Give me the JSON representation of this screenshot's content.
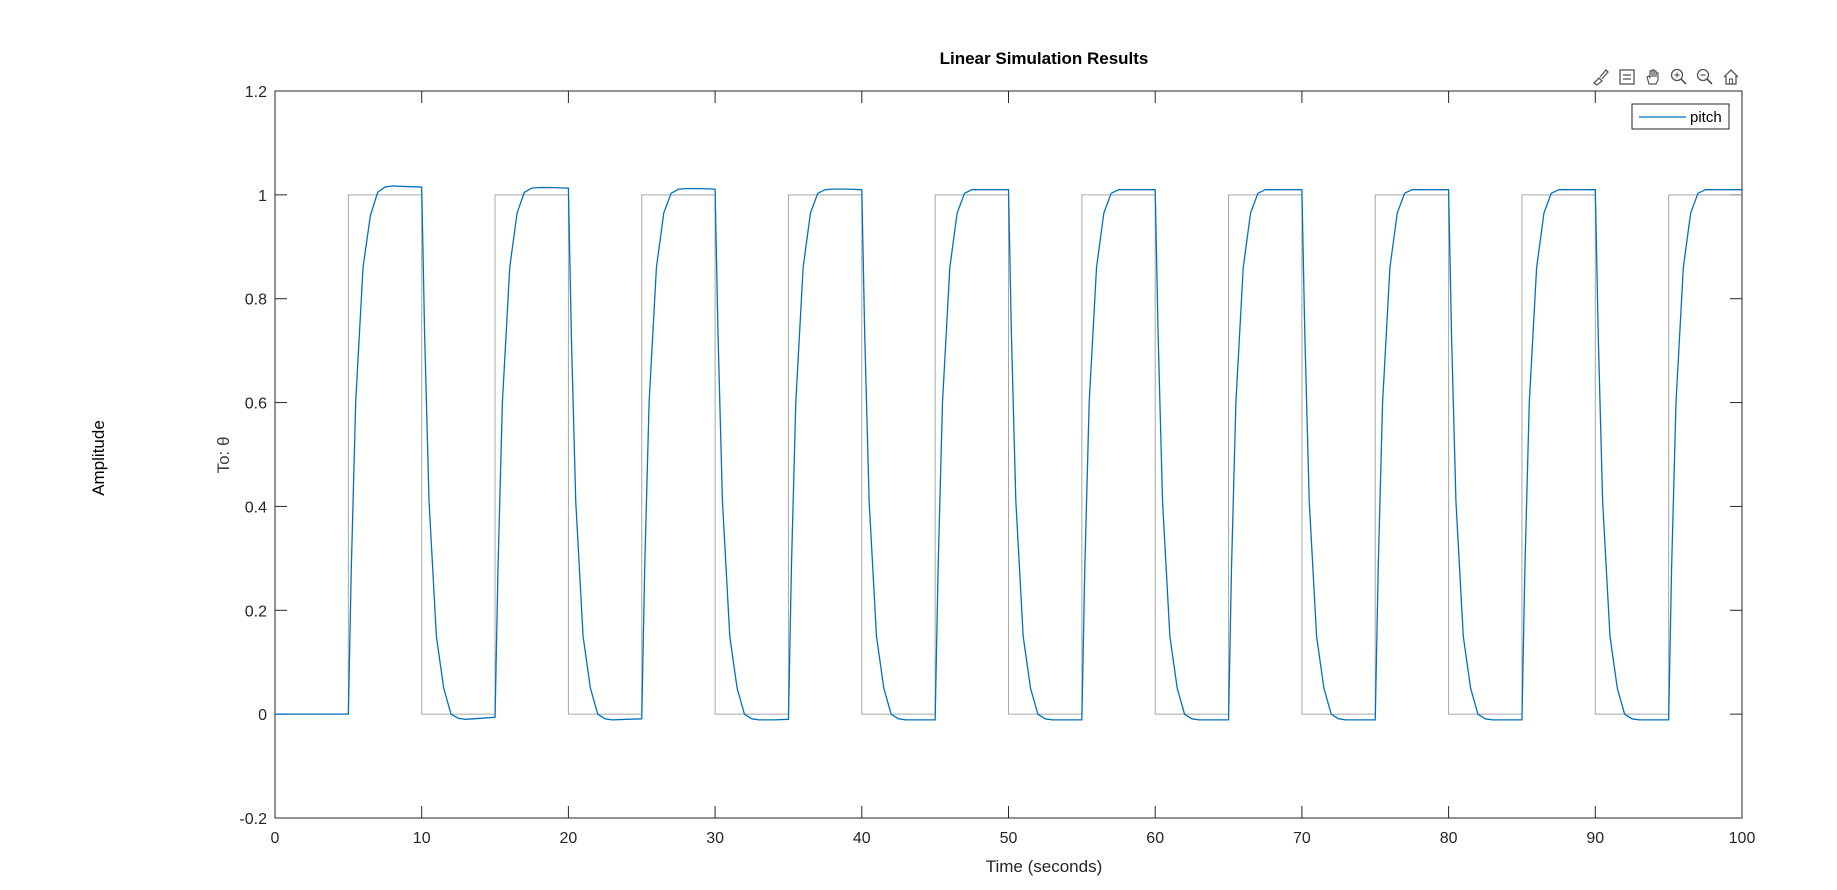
{
  "figure": {
    "outer_ylabel": "Amplitude",
    "toolbar": [
      {
        "name": "brush-icon",
        "label": "Brush"
      },
      {
        "name": "datatip-icon",
        "label": "Data Tips"
      },
      {
        "name": "pan-icon",
        "label": "Pan"
      },
      {
        "name": "zoom-in-icon",
        "label": "Zoom In"
      },
      {
        "name": "zoom-out-icon",
        "label": "Zoom Out"
      },
      {
        "name": "home-icon",
        "label": "Restore View"
      }
    ]
  },
  "chart_data": {
    "type": "line",
    "title": "Linear Simulation Results",
    "xlabel": "Time (seconds)",
    "ylabel": "To: θ",
    "xlim": [
      0,
      100
    ],
    "ylim": [
      -0.2,
      1.2
    ],
    "xticks": [
      0,
      10,
      20,
      30,
      40,
      50,
      60,
      70,
      80,
      90,
      100
    ],
    "yticks": [
      -0.2,
      0,
      0.2,
      0.4,
      0.6,
      0.8,
      1,
      1.2
    ],
    "ytick_labels": [
      "-0.2",
      "0",
      "0.2",
      "0.4",
      "0.6",
      "0.8",
      "1",
      "1.2"
    ],
    "grid": false,
    "legend": {
      "location": "top-right",
      "entries": [
        "pitch"
      ]
    },
    "input_signal": {
      "color": "#a8a8a8",
      "type": "square wave",
      "period": 10,
      "low": 0,
      "high": 1,
      "rise_times": [
        5,
        15,
        25,
        35,
        45,
        55,
        65,
        75,
        85,
        95
      ],
      "fall_times": [
        10,
        20,
        30,
        40,
        50,
        60,
        70,
        80,
        90,
        100
      ]
    },
    "series": [
      {
        "name": "pitch",
        "color": "#0072bd",
        "x": [
          0,
          5,
          5.2,
          5.5,
          6,
          6.5,
          7,
          7.5,
          8,
          9,
          10,
          10.2,
          10.5,
          11,
          11.5,
          12,
          12.5,
          13,
          14,
          15,
          15.2,
          15.5,
          16,
          16.5,
          17,
          17.5,
          18,
          19,
          20,
          20.2,
          20.5,
          21,
          21.5,
          22,
          22.5,
          23,
          24,
          25,
          25.2,
          25.5,
          26,
          26.5,
          27,
          27.5,
          28,
          29,
          30,
          30.2,
          30.5,
          31,
          31.5,
          32,
          32.5,
          33,
          34,
          35,
          35.2,
          35.5,
          36,
          36.5,
          37,
          37.5,
          38,
          39,
          40,
          40.2,
          40.5,
          41,
          41.5,
          42,
          42.5,
          43,
          44,
          45,
          45.2,
          45.5,
          46,
          46.5,
          47,
          47.5,
          48,
          49,
          50,
          50.2,
          50.5,
          51,
          51.5,
          52,
          52.5,
          53,
          54,
          55,
          55.2,
          55.5,
          56,
          56.5,
          57,
          57.5,
          58,
          59,
          60,
          60.2,
          60.5,
          61,
          61.5,
          62,
          62.5,
          63,
          64,
          65,
          65.2,
          65.5,
          66,
          66.5,
          67,
          67.5,
          68,
          69,
          70,
          70.2,
          70.5,
          71,
          71.5,
          72,
          72.5,
          73,
          74,
          75,
          75.2,
          75.5,
          76,
          76.5,
          77,
          77.5,
          78,
          79,
          80,
          80.2,
          80.5,
          81,
          81.5,
          82,
          82.5,
          83,
          84,
          85,
          85.2,
          85.5,
          86,
          86.5,
          87,
          87.5,
          88,
          89,
          90,
          90.2,
          90.5,
          91,
          91.5,
          92,
          92.5,
          93,
          94,
          95,
          95.2,
          95.5,
          96,
          96.5,
          97,
          97.5,
          98,
          99,
          100
        ],
        "y": [
          0,
          0,
          0.28,
          0.6,
          0.86,
          0.96,
          1.005,
          1.015,
          1.017,
          1.016,
          1.015,
          0.73,
          0.41,
          0.15,
          0.05,
          0.0,
          -0.008,
          -0.01,
          -0.008,
          -0.006,
          0.28,
          0.6,
          0.86,
          0.965,
          1.005,
          1.013,
          1.014,
          1.014,
          1.013,
          0.73,
          0.41,
          0.15,
          0.05,
          0.0,
          -0.009,
          -0.011,
          -0.01,
          -0.009,
          0.28,
          0.6,
          0.86,
          0.965,
          1.003,
          1.011,
          1.012,
          1.012,
          1.011,
          0.73,
          0.41,
          0.15,
          0.05,
          0.0,
          -0.009,
          -0.011,
          -0.011,
          -0.01,
          0.28,
          0.6,
          0.86,
          0.965,
          1.003,
          1.01,
          1.011,
          1.011,
          1.01,
          0.73,
          0.41,
          0.15,
          0.05,
          0.0,
          -0.009,
          -0.011,
          -0.011,
          -0.011,
          0.28,
          0.6,
          0.86,
          0.965,
          1.003,
          1.01,
          1.01,
          1.01,
          1.01,
          0.73,
          0.41,
          0.15,
          0.05,
          0.0,
          -0.009,
          -0.011,
          -0.011,
          -0.011,
          0.28,
          0.6,
          0.86,
          0.965,
          1.003,
          1.01,
          1.01,
          1.01,
          1.01,
          0.73,
          0.41,
          0.15,
          0.05,
          0.0,
          -0.009,
          -0.011,
          -0.011,
          -0.011,
          0.28,
          0.6,
          0.86,
          0.965,
          1.003,
          1.01,
          1.01,
          1.01,
          1.01,
          0.73,
          0.41,
          0.15,
          0.05,
          0.0,
          -0.009,
          -0.011,
          -0.011,
          -0.011,
          0.28,
          0.6,
          0.86,
          0.965,
          1.003,
          1.01,
          1.01,
          1.01,
          1.01,
          0.73,
          0.41,
          0.15,
          0.05,
          0.0,
          -0.009,
          -0.011,
          -0.011,
          -0.011,
          0.28,
          0.6,
          0.86,
          0.965,
          1.003,
          1.01,
          1.01,
          1.01,
          1.01,
          0.73,
          0.41,
          0.15,
          0.05,
          0.0,
          -0.009,
          -0.011,
          -0.011,
          -0.011,
          0.28,
          0.6,
          0.86,
          0.965,
          1.003,
          1.01,
          1.01,
          1.01,
          1.01
        ]
      }
    ]
  }
}
